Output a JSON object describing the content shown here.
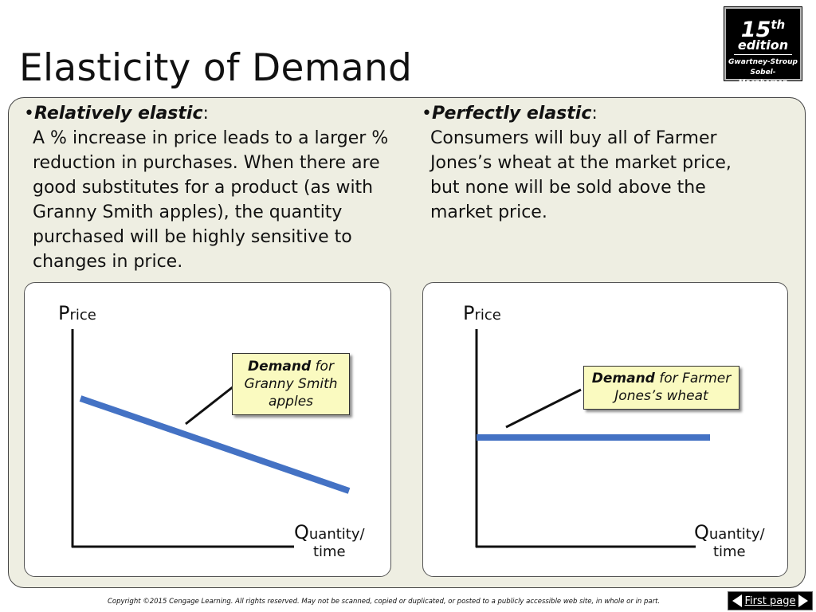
{
  "slide": {
    "title": "Elasticity of Demand"
  },
  "badge": {
    "number": "15",
    "suffix": "th",
    "edition": "edition",
    "author_line1": "Gwartney-Stroup",
    "author_line2": "Sobel-Macpherson"
  },
  "left_text": {
    "bullet": "•",
    "heading": "Relatively elastic",
    "colon": ":",
    "lines": [
      "A % increase in price leads to a larger %",
      "reduction in purchases.  When there are",
      "good substitutes for a product (as with",
      "Granny Smith apples), the quantity",
      "purchased will be highly sensitive to",
      "changes in price."
    ]
  },
  "right_text": {
    "bullet": "•",
    "heading": "Perfectly elastic",
    "colon": ":",
    "lines": [
      "Consumers will buy all of Farmer",
      "Jones’s wheat at the market price,",
      "but none will be sold above the",
      "market price."
    ]
  },
  "chart_left": {
    "y_label_initial": "P",
    "y_label_rest": "rice",
    "x_label_initial": "Q",
    "x_label_rest": "uantity/",
    "x_label_line2": "time",
    "callout_bold": "Demand",
    "callout_line1_rest": " for",
    "callout_line2": "Granny Smith",
    "callout_line3": "apples",
    "curve_color": "#4472c4"
  },
  "chart_right": {
    "y_label_initial": "P",
    "y_label_rest": "rice",
    "x_label_initial": "Q",
    "x_label_rest": "uantity/",
    "x_label_line2": "time",
    "callout_bold": "Demand",
    "callout_line1_rest": " for Farmer",
    "callout_line2": "Jones’s wheat",
    "curve_color": "#4472c4"
  },
  "footer": {
    "copyright": "Copyright ©2015 Cengage Learning. All rights reserved. May not be scanned, copied or duplicated, or posted to a publicly accessible web site, in whole or in part."
  },
  "nav": {
    "first_page_label": "First page",
    "left_arrow_icon": "arrow-left-icon",
    "right_arrow_icon": "arrow-right-icon"
  }
}
